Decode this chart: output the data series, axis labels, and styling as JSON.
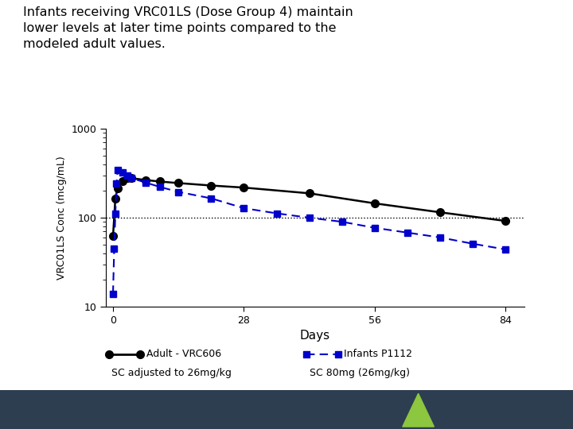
{
  "title_line1": "Infants receiving VRC01LS (Dose Group 4) maintain",
  "title_line2": "lower levels at later time points compared to the",
  "title_line3": "modeled adult values.",
  "ylabel": "VRC01LS Conc (mcg/mL)",
  "xlabel": "Days",
  "adult_label1": "Adult - VRC606",
  "adult_label2": "SC adjusted to 26mg/kg",
  "infant_label1": "Infants P1112",
  "infant_label2": "SC 80mg (26mg/kg)",
  "adult_x": [
    0,
    0.5,
    1,
    2,
    3,
    4,
    7,
    10,
    14,
    21,
    28,
    42,
    56,
    70,
    84
  ],
  "adult_y": [
    62,
    165,
    215,
    260,
    282,
    278,
    265,
    255,
    245,
    230,
    218,
    188,
    145,
    115,
    92
  ],
  "infant_x": [
    0,
    0.25,
    0.5,
    0.75,
    1,
    2,
    3,
    4,
    7,
    10,
    14,
    21,
    28,
    35,
    42,
    49,
    56,
    63,
    70,
    77,
    84
  ],
  "infant_y": [
    14,
    45,
    110,
    240,
    345,
    320,
    298,
    278,
    248,
    222,
    195,
    165,
    128,
    112,
    100,
    90,
    77,
    68,
    60,
    51,
    44
  ],
  "hline_y": 100,
  "adult_color": "#000000",
  "infant_color": "#0000cc",
  "background_color": "#ffffff",
  "ylim": [
    10,
    1000
  ],
  "xlim": [
    -1.5,
    88
  ],
  "xticks": [
    0,
    28,
    56,
    84
  ],
  "footer_color": "#2d3e50",
  "triangle_color": "#8dc63f"
}
